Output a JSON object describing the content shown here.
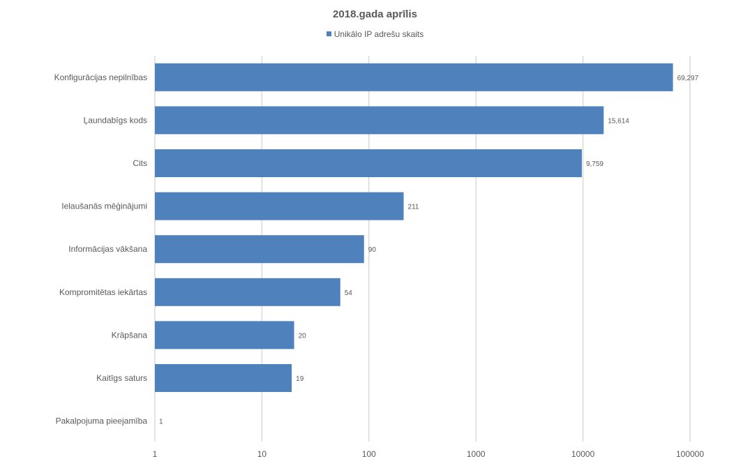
{
  "chart_data": {
    "type": "bar",
    "orientation": "horizontal",
    "title": "2018.gada aprīlis",
    "x_scale": "log",
    "xlim": [
      1,
      100000
    ],
    "x_ticks": [
      "1",
      "10",
      "100",
      "1000",
      "10000",
      "100000"
    ],
    "grid": true,
    "legend_position": "top",
    "series": [
      {
        "name": "Unikālo IP adrešu skaits",
        "color": "#4f81bd"
      }
    ],
    "categories": [
      "Konfigurācijas nepilnības",
      "Ļaundabīgs kods",
      "Cits",
      "Ielaušanās mēģinājumi",
      "Informācijas vākšana",
      "Kompromitētas iekārtas",
      "Krāpšana",
      "Kaitīgs saturs",
      "Pakalpojuma pieejamība"
    ],
    "values": [
      69297,
      15614,
      9759,
      211,
      90,
      54,
      20,
      19,
      1
    ],
    "data_labels": [
      "69,297",
      "15,614",
      "9,759",
      "211",
      "90",
      "54",
      "20",
      "19",
      "1"
    ]
  }
}
